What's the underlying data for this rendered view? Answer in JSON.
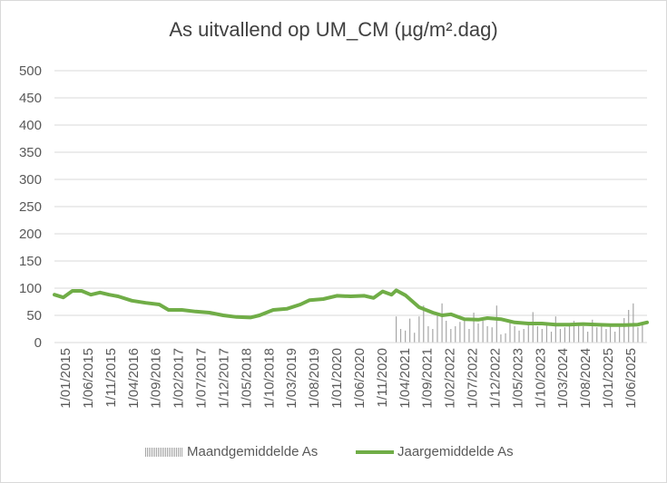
{
  "chart_data": {
    "type": "bar+line",
    "title": "As uitvallend op UM_CM (µg/m².dag)",
    "ylim": [
      0,
      500
    ],
    "yticks": [
      0,
      50,
      100,
      150,
      200,
      250,
      300,
      350,
      400,
      450,
      500
    ],
    "xlim": [
      "2015-01-01",
      "2025-11-01"
    ],
    "xtick_labels": [
      "1/01/2015",
      "1/06/2015",
      "1/11/2015",
      "1/04/2016",
      "1/09/2016",
      "1/02/2017",
      "1/07/2017",
      "1/12/2017",
      "1/05/2018",
      "1/10/2018",
      "1/03/2019",
      "1/08/2019",
      "1/01/2020",
      "1/06/2020",
      "1/11/2020",
      "1/04/2021",
      "1/09/2021",
      "1/02/2022",
      "1/07/2022",
      "1/12/2022",
      "1/05/2023",
      "1/10/2023",
      "1/03/2024",
      "1/08/2024",
      "1/01/2025",
      "1/06/2025"
    ],
    "grid": true,
    "legend_position": "bottom",
    "colors": {
      "bars": "#a6a6a6",
      "line": "#70ad47"
    },
    "series": [
      {
        "name": "Maandgemiddelde As",
        "type": "bar",
        "x": [
          "2021-04-01",
          "2021-05-01",
          "2021-06-01",
          "2021-07-01",
          "2021-08-01",
          "2021-09-01",
          "2021-10-01",
          "2021-11-01",
          "2021-12-01",
          "2022-01-01",
          "2022-02-01",
          "2022-03-01",
          "2022-04-01",
          "2022-05-01",
          "2022-06-01",
          "2022-07-01",
          "2022-08-01",
          "2022-09-01",
          "2022-10-01",
          "2022-11-01",
          "2022-12-01",
          "2023-01-01",
          "2023-02-01",
          "2023-03-01",
          "2023-04-01",
          "2023-05-01",
          "2023-06-01",
          "2023-07-01",
          "2023-08-01",
          "2023-09-01",
          "2023-10-01",
          "2023-11-01",
          "2023-12-01",
          "2024-01-01",
          "2024-02-01",
          "2024-03-01",
          "2024-04-01",
          "2024-05-01",
          "2024-06-01",
          "2024-07-01",
          "2024-08-01",
          "2024-09-01",
          "2024-10-01",
          "2024-11-01",
          "2024-12-01",
          "2025-01-01",
          "2025-02-01",
          "2025-03-01",
          "2025-04-01",
          "2025-05-01",
          "2025-06-01",
          "2025-07-01",
          "2025-08-01",
          "2025-09-01",
          "2025-10-01"
        ],
        "values": [
          48,
          25,
          22,
          44,
          18,
          48,
          68,
          30,
          25,
          55,
          72,
          40,
          25,
          30,
          38,
          40,
          25,
          55,
          35,
          40,
          30,
          28,
          68,
          15,
          17,
          38,
          30,
          22,
          25,
          35,
          56,
          30,
          25,
          36,
          20,
          48,
          25,
          28,
          30,
          40,
          35,
          30,
          20,
          42,
          28,
          30,
          25,
          35,
          20,
          33,
          45,
          60,
          72,
          28,
          38
        ]
      },
      {
        "name": "Jaargemiddelde As",
        "type": "line",
        "x": [
          "2015-01-01",
          "2015-03-01",
          "2015-05-01",
          "2015-07-01",
          "2015-09-01",
          "2015-11-01",
          "2016-01-01",
          "2016-03-01",
          "2016-06-01",
          "2016-09-01",
          "2016-12-01",
          "2017-02-01",
          "2017-05-01",
          "2017-08-01",
          "2017-11-01",
          "2018-02-01",
          "2018-05-01",
          "2018-08-01",
          "2018-10-01",
          "2019-01-01",
          "2019-04-01",
          "2019-07-01",
          "2019-09-01",
          "2019-12-01",
          "2020-03-01",
          "2020-06-01",
          "2020-09-01",
          "2020-11-01",
          "2021-01-01",
          "2021-03-01",
          "2021-04-01",
          "2021-06-01",
          "2021-09-01",
          "2021-12-01",
          "2022-02-01",
          "2022-04-01",
          "2022-07-01",
          "2022-10-01",
          "2022-12-01",
          "2023-03-01",
          "2023-06-01",
          "2023-09-01",
          "2023-12-01",
          "2024-03-01",
          "2024-06-01",
          "2024-09-01",
          "2024-12-01",
          "2025-03-01",
          "2025-06-01",
          "2025-09-01",
          "2025-11-01"
        ],
        "values": [
          88,
          83,
          95,
          95,
          88,
          92,
          88,
          85,
          77,
          73,
          70,
          60,
          60,
          57,
          55,
          50,
          47,
          46,
          50,
          60,
          62,
          70,
          78,
          80,
          86,
          85,
          86,
          82,
          94,
          88,
          96,
          87,
          65,
          55,
          50,
          52,
          43,
          42,
          45,
          43,
          37,
          35,
          35,
          33,
          33,
          34,
          33,
          32,
          32,
          33,
          37
        ]
      }
    ]
  }
}
